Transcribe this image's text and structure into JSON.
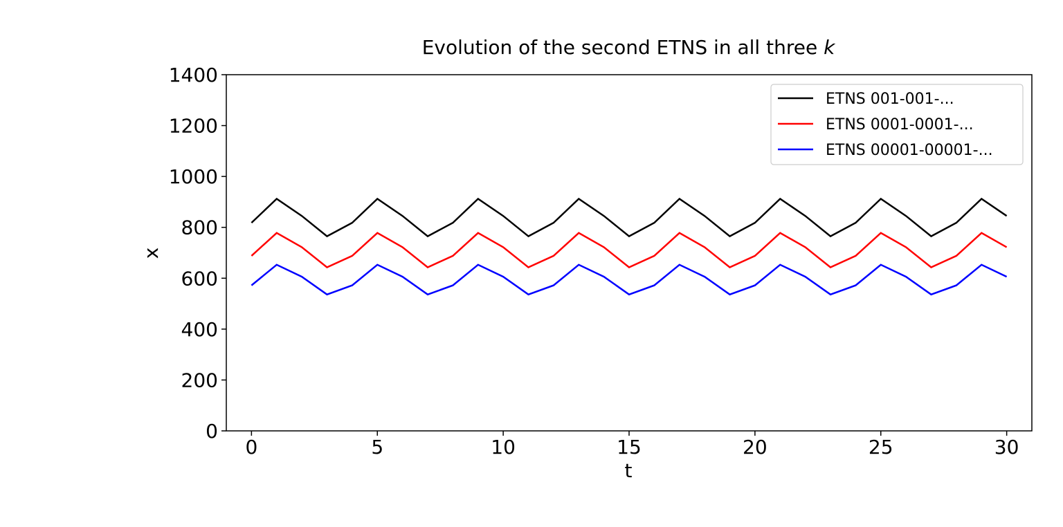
{
  "chart_data": {
    "type": "line",
    "title": "Evolution of the second ETNS in all three",
    "title_symbol": "k",
    "xlabel": "t",
    "ylabel": "x",
    "xlim": [
      -1,
      31
    ],
    "ylim": [
      0,
      1400
    ],
    "xticks": [
      0,
      5,
      10,
      15,
      20,
      25,
      30
    ],
    "yticks": [
      0,
      200,
      400,
      600,
      800,
      1000,
      1200,
      1400
    ],
    "grid": false,
    "legend_position": "top-right",
    "x": [
      0,
      1,
      2,
      3,
      4,
      5,
      6,
      7,
      8,
      9,
      10,
      11,
      12,
      13,
      14,
      15,
      16,
      17,
      18,
      19,
      20,
      21,
      22,
      23,
      24,
      25,
      26,
      27,
      28,
      29,
      30
    ],
    "series": [
      {
        "name": "ETNS 001-001-...",
        "color": "#000000",
        "values": [
          818,
          912,
          845,
          765,
          818,
          912,
          845,
          765,
          818,
          912,
          845,
          765,
          818,
          912,
          845,
          765,
          818,
          912,
          845,
          765,
          818,
          912,
          845,
          765,
          818,
          912,
          845,
          765,
          818,
          912,
          845
        ]
      },
      {
        "name": "ETNS 0001-0001-...",
        "color": "#ff0000",
        "values": [
          688,
          778,
          722,
          643,
          688,
          778,
          722,
          643,
          688,
          778,
          722,
          643,
          688,
          778,
          722,
          643,
          688,
          778,
          722,
          643,
          688,
          778,
          722,
          643,
          688,
          778,
          722,
          643,
          688,
          778,
          722
        ]
      },
      {
        "name": "ETNS 00001-00001-...",
        "color": "#0000ff",
        "values": [
          572,
          653,
          606,
          536,
          572,
          653,
          606,
          536,
          572,
          653,
          606,
          536,
          572,
          653,
          606,
          536,
          572,
          653,
          606,
          536,
          572,
          653,
          606,
          536,
          572,
          653,
          606,
          536,
          572,
          653,
          606
        ]
      }
    ]
  }
}
